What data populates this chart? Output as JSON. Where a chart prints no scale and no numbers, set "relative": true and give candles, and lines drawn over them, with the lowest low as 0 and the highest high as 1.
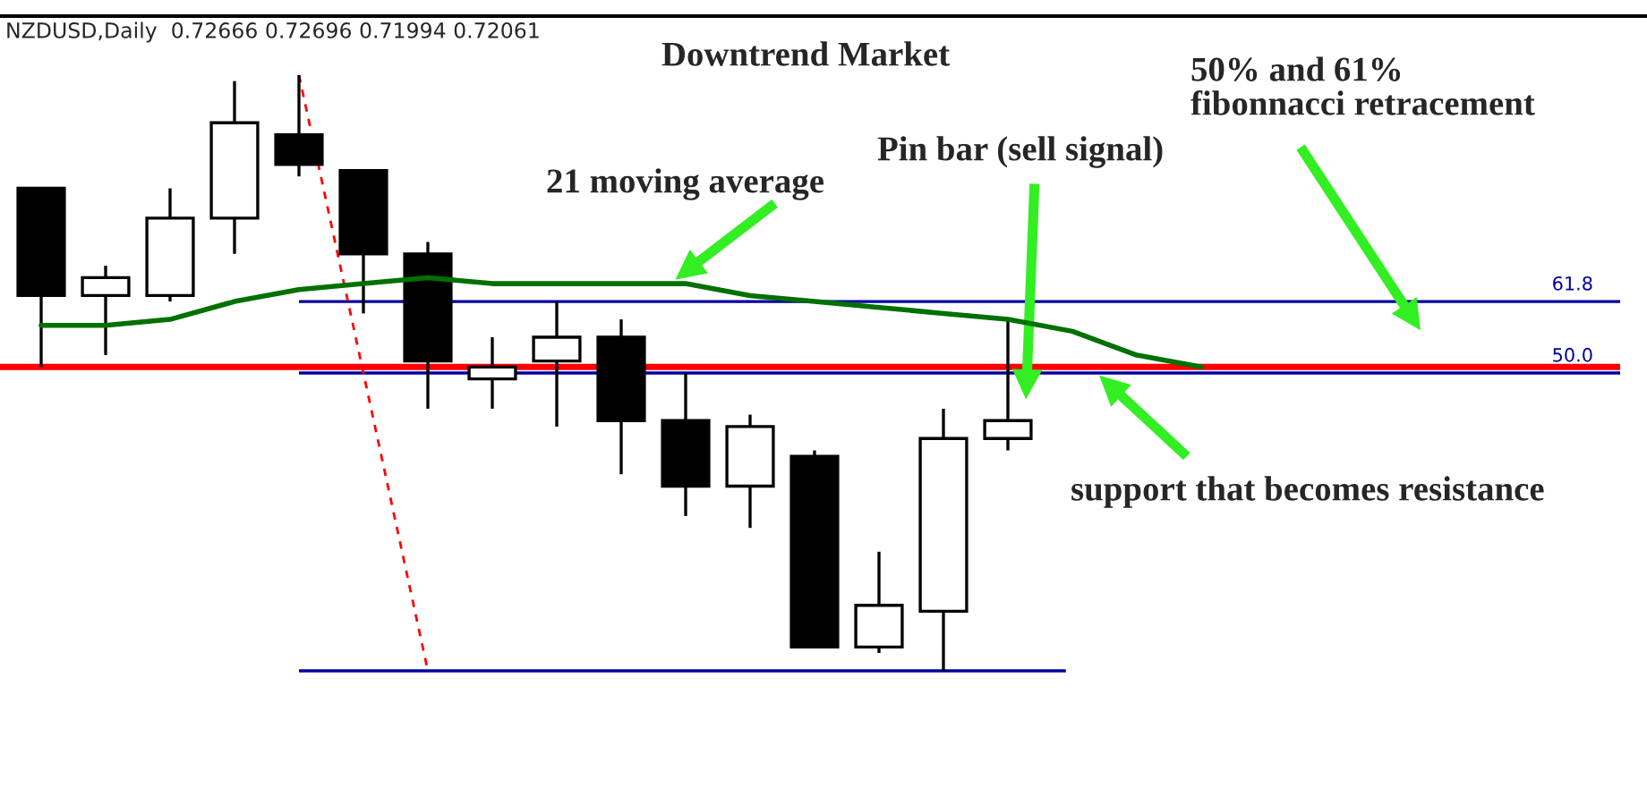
{
  "chart_data": {
    "type": "candlestick",
    "title": "Downtrend Market",
    "relative": true,
    "grid": false,
    "categories": [
      null,
      null,
      null,
      null,
      null,
      null,
      null,
      null,
      null,
      null,
      null,
      null,
      null,
      null,
      null,
      null,
      null,
      null,
      null
    ],
    "ohlc": [
      [
        0.81,
        0.81,
        0.51,
        0.63
      ],
      [
        0.63,
        0.68,
        0.53,
        0.66
      ],
      [
        0.63,
        0.81,
        0.62,
        0.76
      ],
      [
        0.76,
        0.99,
        0.7,
        0.92
      ],
      [
        0.9,
        1.0,
        0.83,
        0.85
      ],
      [
        0.84,
        0.84,
        0.6,
        0.7
      ],
      [
        0.7,
        0.72,
        0.44,
        0.52
      ],
      [
        0.49,
        0.56,
        0.44,
        0.51
      ],
      [
        0.52,
        0.62,
        0.41,
        0.56
      ],
      [
        0.56,
        0.59,
        0.33,
        0.42
      ],
      [
        0.42,
        0.5,
        0.26,
        0.31
      ],
      [
        0.31,
        0.43,
        0.24,
        0.41
      ],
      [
        0.36,
        0.37,
        0.04,
        0.04
      ],
      [
        0.04,
        0.2,
        0.03,
        0.11
      ],
      [
        0.1,
        0.44,
        0.0,
        0.39
      ],
      [
        0.39,
        0.59,
        0.37,
        0.42
      ],
      null,
      null,
      null
    ],
    "series": [
      {
        "type": "line",
        "color": "#007000",
        "values": [
          0.58,
          0.58,
          0.59,
          0.62,
          0.64,
          0.65,
          0.66,
          0.65,
          0.65,
          0.65,
          0.65,
          0.63,
          0.62,
          0.61,
          0.6,
          0.59,
          0.57,
          0.53,
          0.51
        ]
      },
      {
        "type": "line",
        "color": "#ff0000",
        "line_style": "dashed",
        "values": [
          null,
          null,
          null,
          null,
          1.0,
          0.5,
          0.0,
          null,
          null,
          null,
          null,
          null,
          null,
          null,
          null,
          null,
          null,
          null,
          null
        ]
      }
    ],
    "ref_lines": [
      {
        "axis": "y",
        "value": 0.51,
        "color": "#ff0000"
      },
      {
        "axis": "y",
        "value": 0.62,
        "color": "#0000a0"
      },
      {
        "axis": "y",
        "value": 0.5,
        "color": "#0000a0"
      },
      {
        "axis": "y",
        "value": 0.0,
        "color": "#0000a0"
      }
    ],
    "annotations": [
      "NZDUSD,Daily  0.72666 0.72696 0.71994 0.72061",
      "21 moving average",
      "Pin bar (sell signal)",
      "50% and 61%\nfibonnacci retracement",
      "support that becomes resistance",
      {
        "text": "61.8",
        "y": 0.62
      },
      {
        "text": "50.0",
        "y": 0.5
      }
    ]
  }
}
